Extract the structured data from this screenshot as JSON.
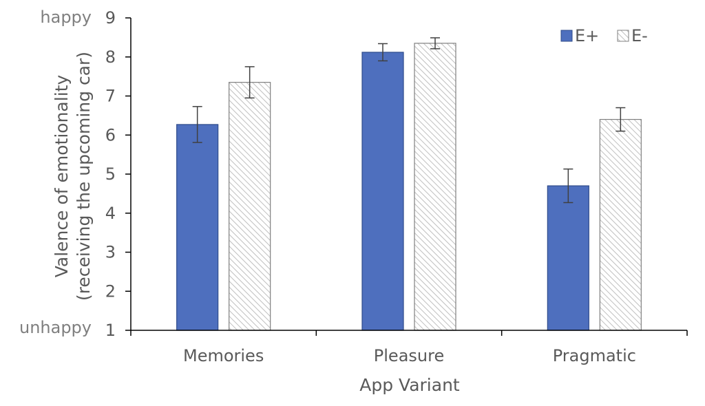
{
  "chart_data": {
    "type": "bar",
    "categories": [
      "Memories",
      "Pleasure",
      "Pragmatic"
    ],
    "series": [
      {
        "name": "E+",
        "values": [
          6.27,
          8.12,
          4.7
        ],
        "error": [
          0.46,
          0.22,
          0.43
        ],
        "color": "#4e6fbe",
        "pattern": "solid"
      },
      {
        "name": "E-",
        "values": [
          7.35,
          8.35,
          6.4
        ],
        "error": [
          0.4,
          0.14,
          0.3
        ],
        "color": "#d9d9d9",
        "pattern": "diagonal-hatch"
      }
    ],
    "xlabel": "App Variant",
    "ylabel_line1": "Valence of emotionality",
    "ylabel_line2": "(receiving the upcoming car)",
    "ylim": [
      1,
      9
    ],
    "yticks": [
      1,
      2,
      3,
      4,
      5,
      6,
      7,
      8,
      9
    ],
    "y_end_labels": {
      "top": "happy",
      "bottom": "unhappy"
    },
    "legend_position": "top-right",
    "grid": false
  }
}
